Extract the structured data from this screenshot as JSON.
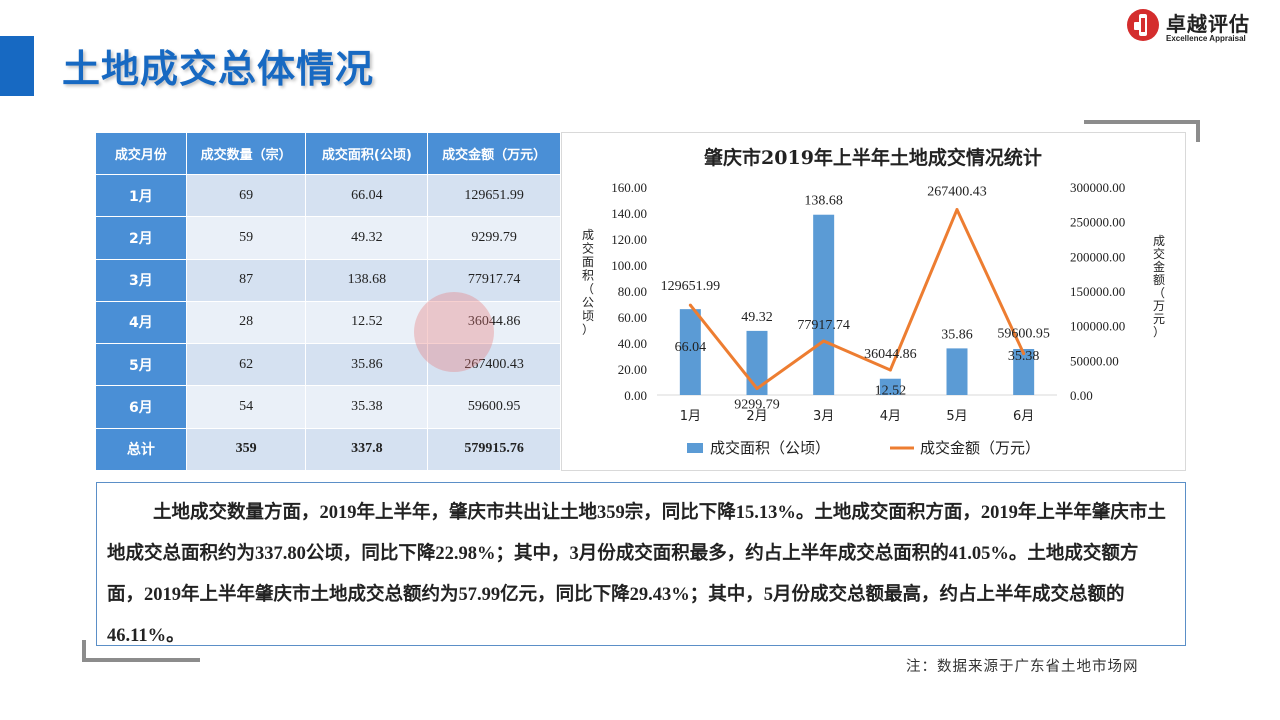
{
  "header": {
    "title": "土地成交总体情况"
  },
  "logo": {
    "name_cn": "卓越评估",
    "name_en": "Excellence Appraisal"
  },
  "table": {
    "headers": [
      "成交月份",
      "成交数量（宗）",
      "成交面积(公顷)",
      "成交金额（万元）"
    ],
    "rows": [
      {
        "month": "1月",
        "count": "69",
        "area": "66.04",
        "amount": "129651.99"
      },
      {
        "month": "2月",
        "count": "59",
        "area": "49.32",
        "amount": "9299.79"
      },
      {
        "month": "3月",
        "count": "87",
        "area": "138.68",
        "amount": "77917.74"
      },
      {
        "month": "4月",
        "count": "28",
        "area": "12.52",
        "amount": "36044.86"
      },
      {
        "month": "5月",
        "count": "62",
        "area": "35.86",
        "amount": "267400.43"
      },
      {
        "month": "6月",
        "count": "54",
        "area": "35.38",
        "amount": "59600.95"
      }
    ],
    "total": {
      "month": "总计",
      "count": "359",
      "area": "337.8",
      "amount": "579915.76"
    }
  },
  "chart_data": {
    "type": "bar",
    "title": "肇庆市2019年上半年土地成交情况统计",
    "categories": [
      "1月",
      "2月",
      "3月",
      "4月",
      "5月",
      "6月"
    ],
    "series": [
      {
        "name": "成交面积（公顷）",
        "type": "bar",
        "axis": "left",
        "values": [
          66.04,
          49.32,
          138.68,
          12.52,
          35.86,
          35.38
        ],
        "color": "#5b9bd5"
      },
      {
        "name": "成交金额（万元）",
        "type": "line",
        "axis": "right",
        "values": [
          129651.99,
          9299.79,
          77917.74,
          36044.86,
          267400.43,
          59600.95
        ],
        "color": "#ed7d31"
      }
    ],
    "ylabel_left": "成交面积（公顷）",
    "ylabel_right": "成交金额（万元）",
    "ylim_left": [
      0,
      160
    ],
    "ylim_right": [
      0,
      300000
    ],
    "yticks_left": [
      "0.00",
      "20.00",
      "40.00",
      "60.00",
      "80.00",
      "100.00",
      "120.00",
      "140.00",
      "160.00"
    ],
    "yticks_right": [
      "0.00",
      "50000.00",
      "100000.00",
      "150000.00",
      "200000.00",
      "250000.00",
      "300000.00"
    ],
    "legend": "bottom",
    "grid": false
  },
  "summary": {
    "text": "土地成交数量方面，2019年上半年，肇庆市共出让土地359宗，同比下降15.13%。土地成交面积方面，2019年上半年肇庆市土地成交总面积约为337.80公顷，同比下降22.98%；其中，3月份成交面积最多，约占上半年成交总面积的41.05%。土地成交额方面，2019年上半年肇庆市土地成交总额约为57.99亿元，同比下降29.43%；其中，5月份成交总额最高，约占上半年成交总额的46.11%。"
  },
  "footnote": {
    "text": "注：数据来源于广东省土地市场网"
  }
}
